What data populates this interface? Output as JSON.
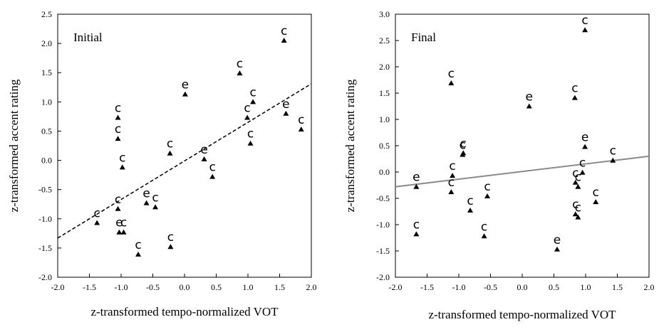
{
  "chart_data": [
    {
      "type": "scatter",
      "title": "Initial",
      "xlabel": "z-transformed tempo-normalized VOT",
      "ylabel": "z-transformed accent rating",
      "xlim": [
        -2.0,
        2.0
      ],
      "ylim": [
        -2.0,
        2.5
      ],
      "x_ticks": [
        "-2.0",
        "-1.5",
        "-1.0",
        "-0.5",
        "0.0",
        "0.5",
        "1.0",
        "1.5",
        "2.0"
      ],
      "y_ticks": [
        "-2.0",
        "-1.5",
        "-1.0",
        "-0.5",
        "0.0",
        "0.5",
        "1.0",
        "1.5",
        "2.0",
        "2.5"
      ],
      "grid": false,
      "trendline": {
        "style": "dashed",
        "from": [
          -2.0,
          -1.33
        ],
        "to": [
          2.0,
          1.31
        ]
      },
      "points": [
        {
          "x": -1.38,
          "y": -1.07,
          "label": "c"
        },
        {
          "x": -1.05,
          "y": 0.73,
          "label": "c"
        },
        {
          "x": -1.05,
          "y": 0.37,
          "label": "c"
        },
        {
          "x": -1.05,
          "y": -0.83,
          "label": "c"
        },
        {
          "x": -0.98,
          "y": -0.12,
          "label": "c"
        },
        {
          "x": -1.03,
          "y": -1.23,
          "label": "e"
        },
        {
          "x": -0.96,
          "y": -1.23,
          "label": "c"
        },
        {
          "x": -0.73,
          "y": -1.61,
          "label": "c"
        },
        {
          "x": -0.6,
          "y": -0.73,
          "label": "e"
        },
        {
          "x": -0.46,
          "y": -0.8,
          "label": "c"
        },
        {
          "x": -0.23,
          "y": 0.12,
          "label": "c"
        },
        {
          "x": -0.22,
          "y": -1.48,
          "label": "c"
        },
        {
          "x": 0.01,
          "y": 1.13,
          "label": "e"
        },
        {
          "x": 0.31,
          "y": 0.02,
          "label": "e"
        },
        {
          "x": 0.44,
          "y": -0.28,
          "label": "c"
        },
        {
          "x": 0.87,
          "y": 1.49,
          "label": "c"
        },
        {
          "x": 0.99,
          "y": 0.73,
          "label": "c"
        },
        {
          "x": 1.08,
          "y": 1.0,
          "label": "c"
        },
        {
          "x": 1.04,
          "y": 0.29,
          "label": "c"
        },
        {
          "x": 1.57,
          "y": 2.05,
          "label": "c"
        },
        {
          "x": 1.6,
          "y": 0.8,
          "label": "e"
        },
        {
          "x": 1.84,
          "y": 0.53,
          "label": "c"
        }
      ]
    },
    {
      "type": "scatter",
      "title": "Final",
      "xlabel": "z-transformed tempo-normalized VOT",
      "ylabel": "z-transformed accent rating",
      "xlim": [
        -2.0,
        2.0
      ],
      "ylim": [
        -2.0,
        3.0
      ],
      "x_ticks": [
        "-2.0",
        "-1.5",
        "-1.0",
        "-0.5",
        "0.0",
        "0.5",
        "1.0",
        "1.5",
        "2.0"
      ],
      "y_ticks": [
        "-2.0",
        "-1.5",
        "-1.0",
        "-0.5",
        "0.0",
        "0.5",
        "1.0",
        "1.5",
        "2.0",
        "2.5",
        "3.0"
      ],
      "grid": false,
      "trendline": {
        "style": "solid",
        "from": [
          -2.0,
          -0.28
        ],
        "to": [
          2.0,
          0.3
        ]
      },
      "points": [
        {
          "x": -1.67,
          "y": -0.28,
          "label": "e"
        },
        {
          "x": -1.67,
          "y": -1.18,
          "label": "c"
        },
        {
          "x": -1.12,
          "y": 1.69,
          "label": "c"
        },
        {
          "x": -1.1,
          "y": -0.07,
          "label": "c"
        },
        {
          "x": -1.12,
          "y": -0.38,
          "label": "c"
        },
        {
          "x": -0.94,
          "y": 0.33,
          "label": "c"
        },
        {
          "x": -0.93,
          "y": 0.36,
          "label": "c"
        },
        {
          "x": -0.82,
          "y": -0.73,
          "label": "c"
        },
        {
          "x": -0.6,
          "y": -1.22,
          "label": "c"
        },
        {
          "x": -0.55,
          "y": -0.46,
          "label": "c"
        },
        {
          "x": 0.11,
          "y": 1.25,
          "label": "e"
        },
        {
          "x": 0.55,
          "y": -1.47,
          "label": "e"
        },
        {
          "x": 0.83,
          "y": 1.41,
          "label": "c"
        },
        {
          "x": 0.84,
          "y": -0.2,
          "label": "c"
        },
        {
          "x": 0.88,
          "y": -0.28,
          "label": "c"
        },
        {
          "x": 0.84,
          "y": -0.8,
          "label": "c"
        },
        {
          "x": 0.88,
          "y": -0.86,
          "label": "c"
        },
        {
          "x": 0.95,
          "y": -0.01,
          "label": "c"
        },
        {
          "x": 0.99,
          "y": 0.48,
          "label": "e"
        },
        {
          "x": 0.99,
          "y": 2.7,
          "label": "c"
        },
        {
          "x": 1.16,
          "y": -0.57,
          "label": "c"
        },
        {
          "x": 1.43,
          "y": 0.22,
          "label": "c"
        }
      ]
    }
  ]
}
